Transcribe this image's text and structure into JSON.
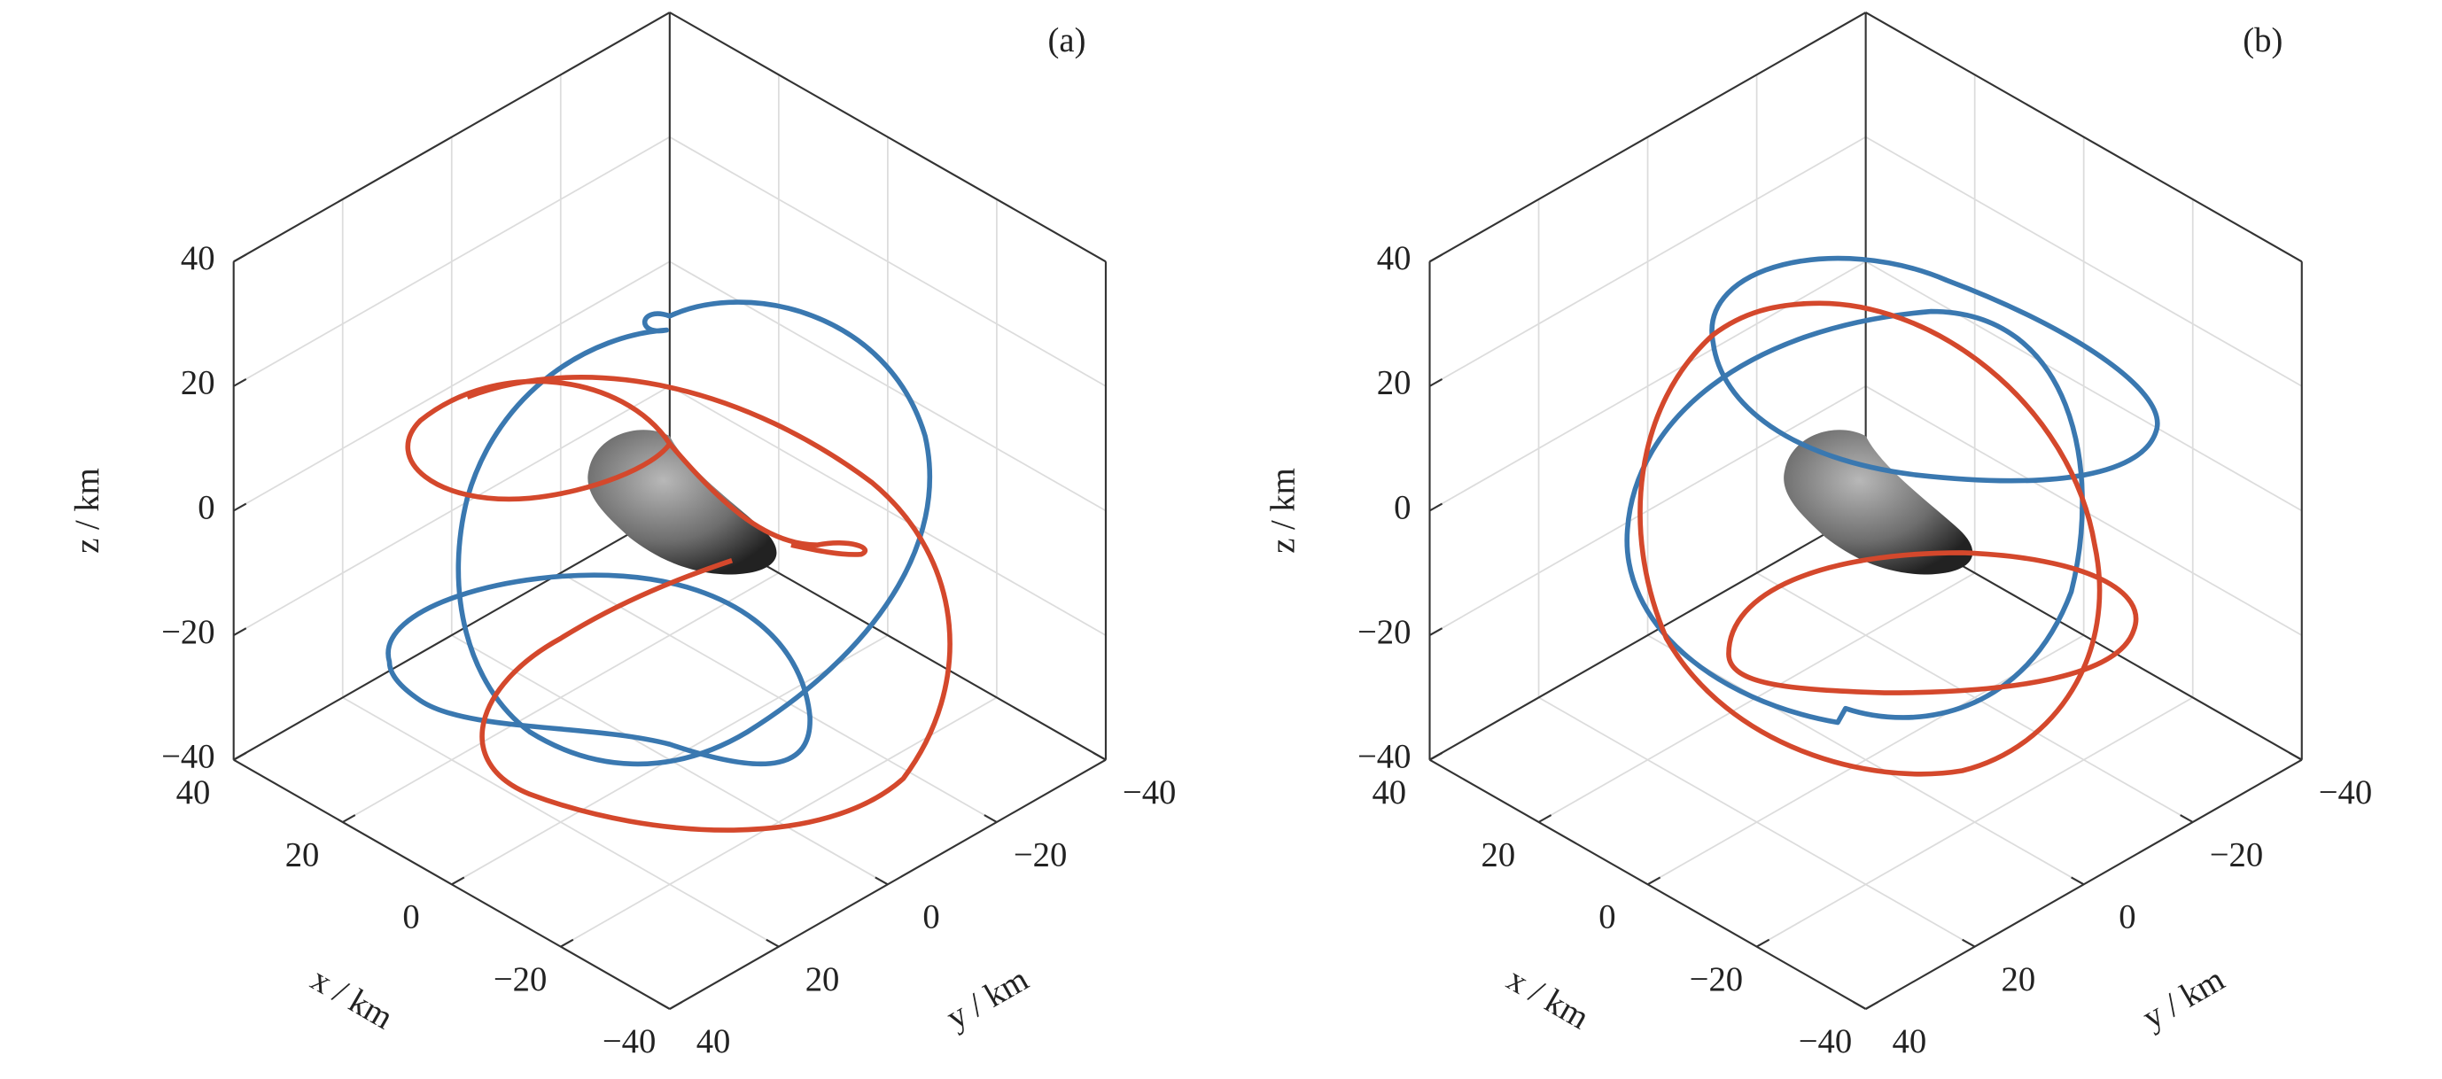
{
  "chart_data": [
    {
      "type": "line3d",
      "title": "(a)",
      "xlabel": "x / km",
      "ylabel": "y / km",
      "zlabel": "z / km",
      "xlim": [
        -40,
        40
      ],
      "ylim": [
        -40,
        40
      ],
      "zlim": [
        -40,
        40
      ],
      "xticks": [
        {
          "value": -40,
          "label": "−40"
        },
        {
          "value": -20,
          "label": "−20"
        },
        0,
        20,
        40
      ],
      "yticks": [
        {
          "value": -40,
          "label": "−40"
        },
        {
          "value": -20,
          "label": "−20"
        },
        0,
        20,
        40
      ],
      "zticks": [
        {
          "value": -40,
          "label": "−40"
        },
        {
          "value": -20,
          "label": "−20"
        },
        0,
        20,
        40
      ],
      "grid": true
    },
    {
      "type": "line3d",
      "title": "(b)",
      "xlabel": "x / km",
      "ylabel": "y / km",
      "zlabel": "z / km",
      "xlim": [
        -40,
        40
      ],
      "ylim": [
        -40,
        40
      ],
      "zlim": [
        -40,
        40
      ],
      "xticks": [
        {
          "value": -40,
          "label": "−40"
        },
        {
          "value": -20,
          "label": "−20"
        },
        0,
        20,
        40
      ],
      "yticks": [
        {
          "value": -40,
          "label": "−40"
        },
        {
          "value": -20,
          "label": "−20"
        },
        0,
        20,
        40
      ],
      "zticks": [
        {
          "value": -40,
          "label": "−40"
        },
        {
          "value": -20,
          "label": "−20"
        },
        0,
        20,
        40
      ],
      "grid": true
    }
  ]
}
